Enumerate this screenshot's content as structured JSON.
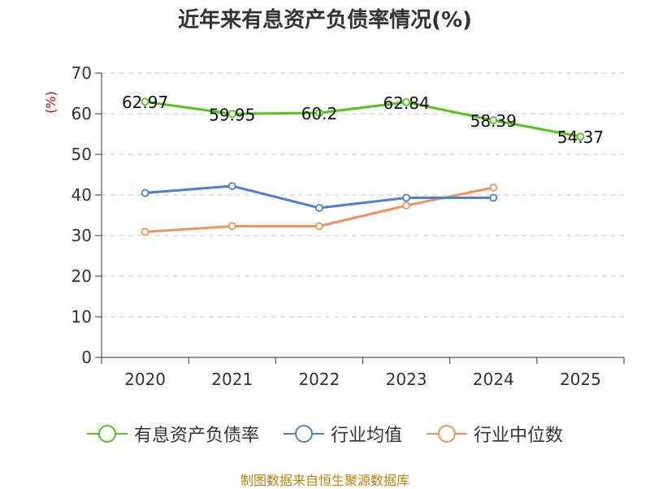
{
  "chart_data": {
    "type": "line",
    "title": "近年来有息资产负债率情况(%)",
    "ylabel": "(%)",
    "xlabel": "",
    "ylim": [
      0,
      70
    ],
    "yticks": [
      0,
      10,
      20,
      30,
      40,
      50,
      60,
      70
    ],
    "categories": [
      "2020",
      "2021",
      "2022",
      "2023",
      "2024",
      "2025"
    ],
    "grid": true,
    "legend": "bottom",
    "series": [
      {
        "name": "有息资产负债率",
        "color": "#52c41a",
        "values": [
          62.97,
          59.95,
          60.2,
          62.84,
          58.39,
          54.37
        ],
        "labels": [
          "62.97",
          "59.95",
          "60.2",
          "62.84",
          "58.39",
          "54.37"
        ]
      },
      {
        "name": "行业均值",
        "color": "#4e7fd8",
        "values": [
          40.5,
          42.2,
          36.8,
          39.3,
          39.3,
          null
        ]
      },
      {
        "name": "行业中位数",
        "color": "#f5905a",
        "values": [
          30.9,
          32.3,
          32.3,
          37.4,
          41.8,
          null
        ]
      }
    ]
  },
  "source": "制图数据来自恒生聚源数据库"
}
